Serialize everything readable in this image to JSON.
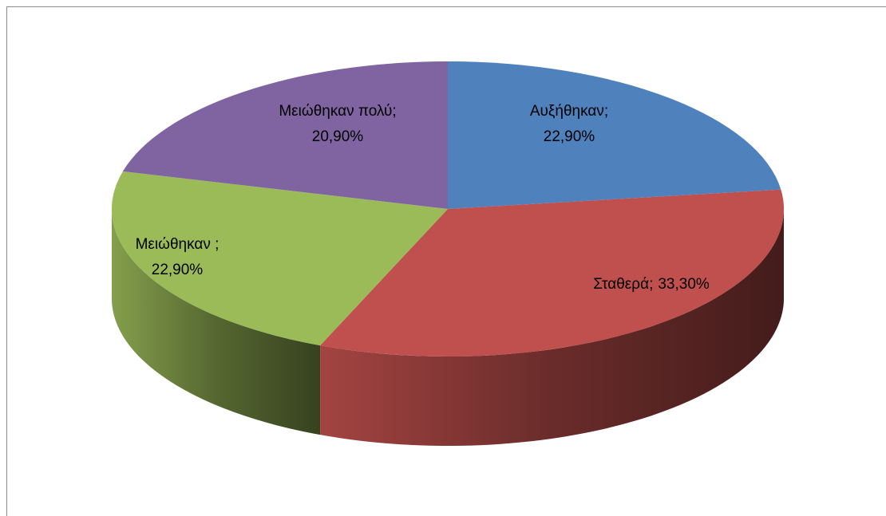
{
  "chart_data": {
    "type": "pie",
    "categories": [
      "Αυξήθηκαν;",
      "Σταθερά;",
      "Μειώθηκαν ;",
      "Μειώθηκαν πολύ;"
    ],
    "values": [
      22.9,
      33.3,
      22.9,
      20.9
    ],
    "value_labels": [
      "22,90%",
      "33,30%",
      "22,90%",
      "20,90%"
    ],
    "colors": [
      "#4f81bd",
      "#c0504d",
      "#9bbb59",
      "#8064a2"
    ]
  }
}
